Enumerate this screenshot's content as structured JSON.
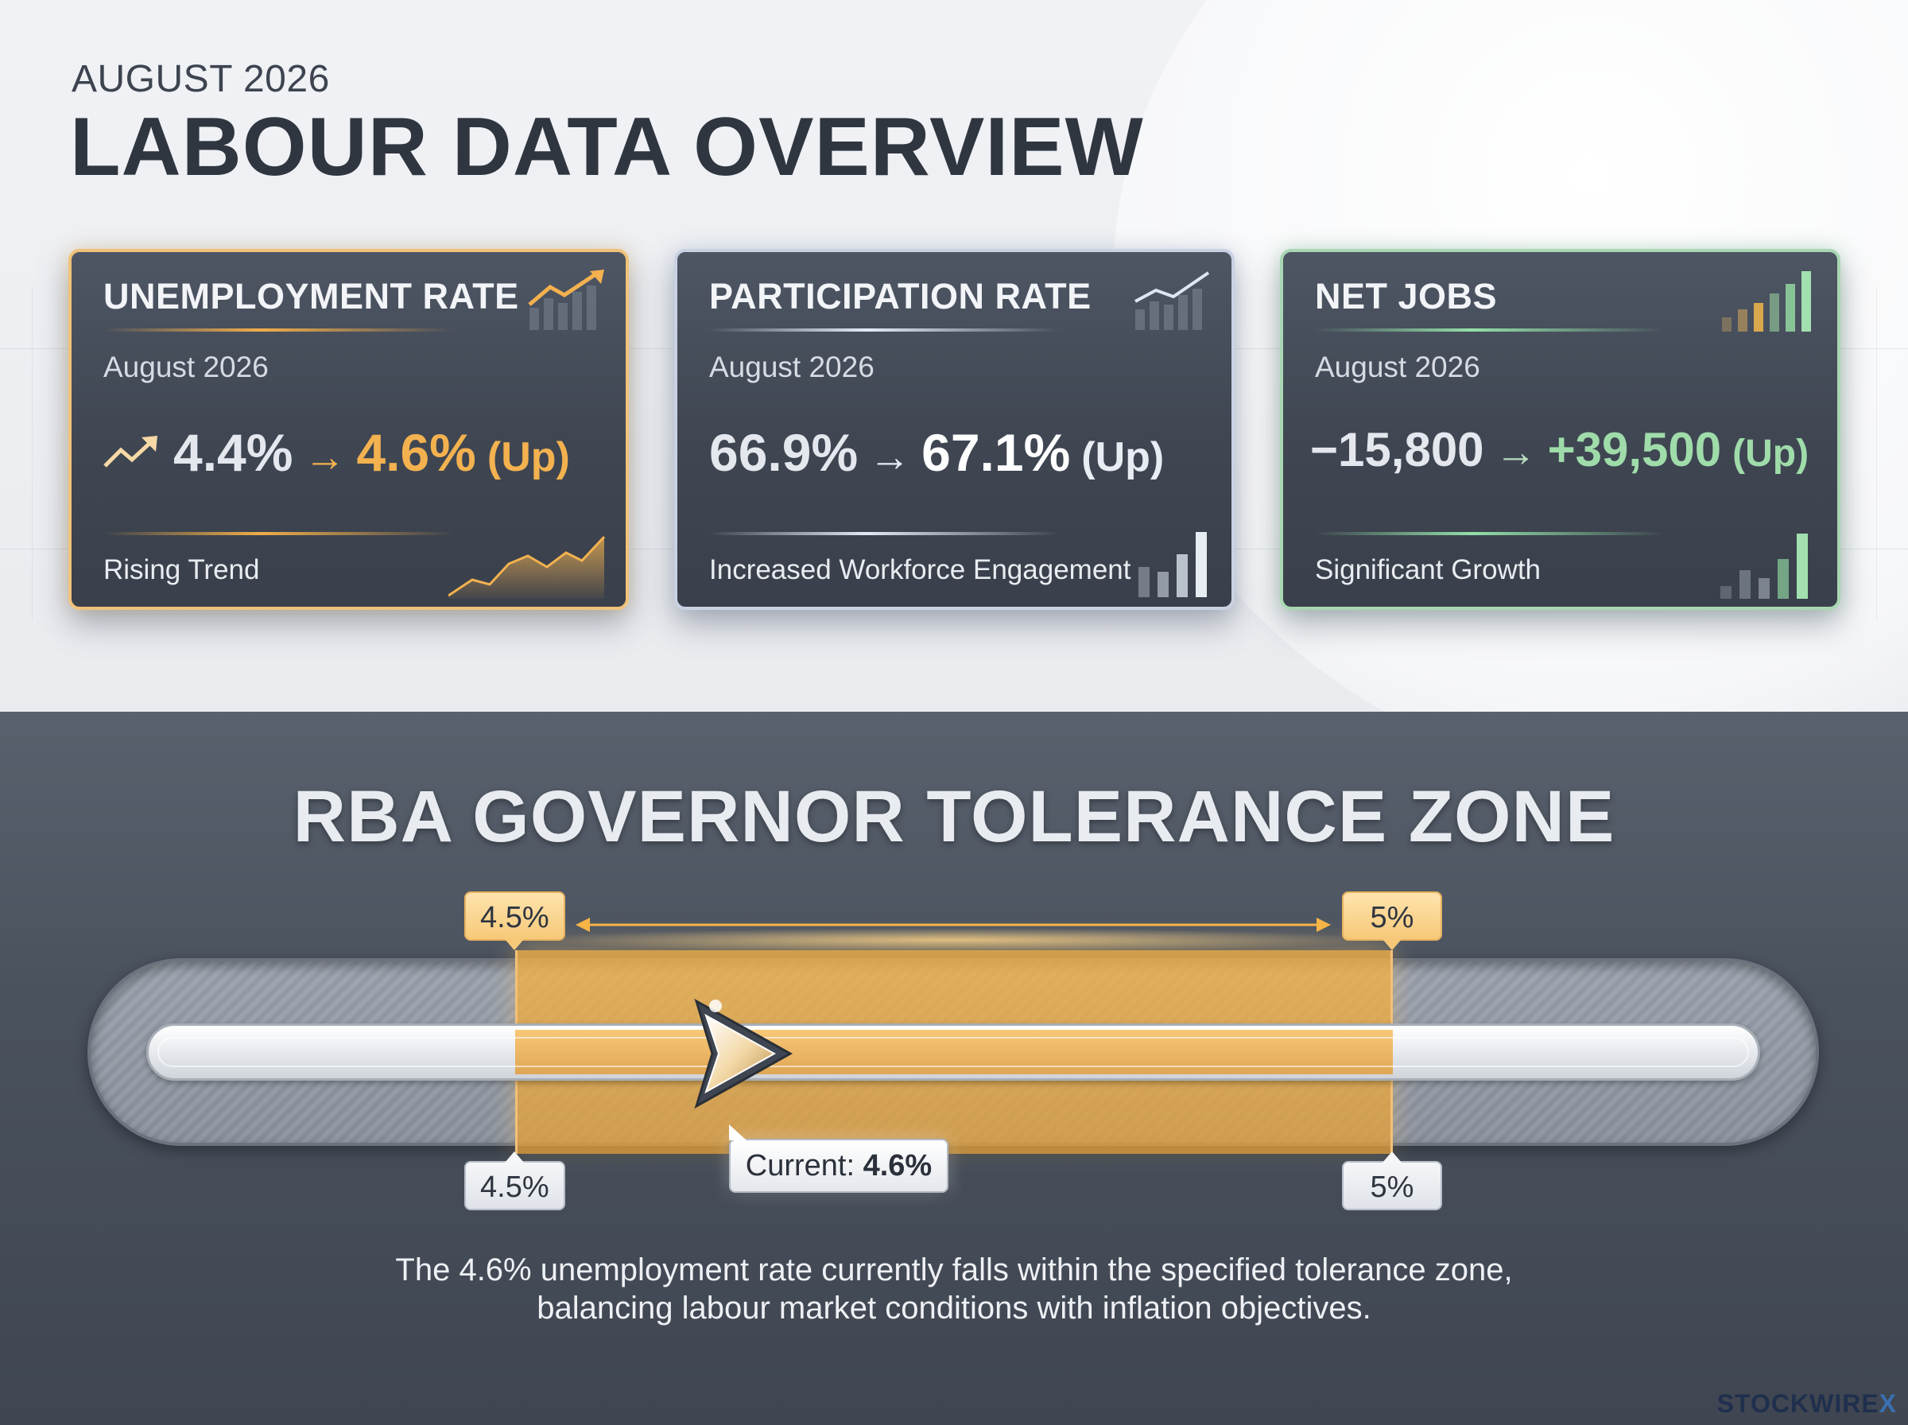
{
  "header": {
    "kicker": "AUGUST 2026",
    "title": "LABOUR DATA OVERVIEW"
  },
  "cards": [
    {
      "title": "UNEMPLOYMENT RATE",
      "date": "August 2026",
      "previous": "4.4%",
      "arrow": "→",
      "current": "4.6%",
      "direction": "(Up)",
      "subtitle": "Rising Trend",
      "accent": "#f0c27a",
      "icons": [
        "trend-up-icon",
        "rising-bar-chart-icon",
        "area-chart-icon"
      ]
    },
    {
      "title": "PARTICIPATION RATE",
      "date": "August 2026",
      "previous": "66.9%",
      "arrow": "→",
      "current": "67.1%",
      "direction": "(Up)",
      "subtitle": "Increased Workforce Engagement",
      "accent": "#c9d2e3",
      "icons": [
        "line-bar-chart-icon",
        "bar-chart-icon"
      ]
    },
    {
      "title": "NET JOBS",
      "date": "August 2026",
      "previous": "−15,800",
      "arrow": "→",
      "current": "+39,500",
      "direction": "(Up)",
      "subtitle": "Significant Growth",
      "accent": "#a9d7b3",
      "icons": [
        "bar-chart-icon",
        "bar-chart-icon"
      ]
    }
  ],
  "zone": {
    "title": "RBA GOVERNOR TOLERANCE ZONE",
    "lower_label": "4.5%",
    "upper_label": "5%",
    "lower_bound": 4.5,
    "upper_bound": 5.0,
    "current_value": 4.6,
    "current_prefix": "Current:",
    "current_label": "4.6%",
    "accent": "#f5b446"
  },
  "description": {
    "line1": "The 4.6% unemployment rate currently falls within the specified tolerance zone,",
    "line2": "balancing labour market conditions with inflation objectives."
  },
  "brand": {
    "name": "STOCKWIRE",
    "mark": "X"
  }
}
